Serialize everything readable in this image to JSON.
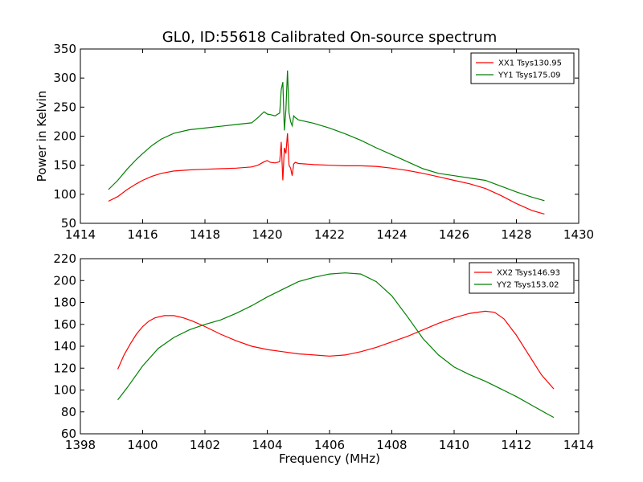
{
  "title": "GL0, ID:55618 Calibrated On-source spectrum",
  "chart_data": [
    {
      "type": "line",
      "ylabel": "Power in Kelvin",
      "xlabel": "",
      "xlim": [
        1414,
        1430
      ],
      "ylim": [
        50,
        350
      ],
      "xticks": [
        "1414",
        "1416",
        "1418",
        "1420",
        "1422",
        "1424",
        "1426",
        "1428",
        "1430"
      ],
      "yticks": [
        "50",
        "100",
        "150",
        "200",
        "250",
        "300",
        "350"
      ],
      "legend_position": "top-right",
      "series": [
        {
          "name": "XX1 Tsys130.95",
          "color": "#ff0000",
          "x": [
            1414.9,
            1415.2,
            1415.5,
            1415.8,
            1416.0,
            1416.3,
            1416.6,
            1417.0,
            1417.5,
            1418.0,
            1418.5,
            1419.0,
            1419.5,
            1419.7,
            1419.9,
            1420.0,
            1420.1,
            1420.25,
            1420.4,
            1420.45,
            1420.5,
            1420.55,
            1420.6,
            1420.65,
            1420.7,
            1420.75,
            1420.8,
            1420.85,
            1420.9,
            1421.0,
            1421.5,
            1422.0,
            1422.5,
            1423.0,
            1423.5,
            1424.0,
            1424.5,
            1425.0,
            1425.5,
            1426.0,
            1426.5,
            1427.0,
            1427.5,
            1428.0,
            1428.5,
            1428.9
          ],
          "values": [
            88,
            96,
            108,
            118,
            124,
            131,
            136,
            140,
            142,
            143,
            144,
            145,
            147,
            150,
            156,
            158,
            155,
            154,
            156,
            190,
            124,
            180,
            170,
            205,
            150,
            145,
            132,
            152,
            155,
            153,
            151,
            150,
            149,
            149,
            148,
            145,
            141,
            136,
            130,
            124,
            118,
            110,
            98,
            84,
            72,
            66
          ]
        },
        {
          "name": "YY1 Tsys175.09",
          "color": "#008000",
          "x": [
            1414.9,
            1415.2,
            1415.5,
            1415.8,
            1416.0,
            1416.3,
            1416.6,
            1417.0,
            1417.5,
            1418.0,
            1418.5,
            1419.0,
            1419.5,
            1419.7,
            1419.9,
            1420.0,
            1420.1,
            1420.25,
            1420.4,
            1420.45,
            1420.5,
            1420.55,
            1420.6,
            1420.65,
            1420.7,
            1420.75,
            1420.8,
            1420.85,
            1420.9,
            1421.0,
            1421.5,
            1422.0,
            1422.5,
            1423.0,
            1423.5,
            1424.0,
            1424.5,
            1425.0,
            1425.5,
            1426.0,
            1426.5,
            1427.0,
            1427.5,
            1428.0,
            1428.5,
            1428.9
          ],
          "values": [
            108,
            124,
            143,
            160,
            170,
            184,
            195,
            205,
            211,
            214,
            217,
            220,
            223,
            232,
            242,
            238,
            237,
            235,
            240,
            280,
            293,
            210,
            245,
            313,
            240,
            225,
            218,
            235,
            232,
            228,
            222,
            214,
            204,
            193,
            180,
            168,
            156,
            144,
            136,
            132,
            128,
            124,
            114,
            104,
            95,
            89
          ]
        }
      ]
    },
    {
      "type": "line",
      "ylabel": "",
      "xlabel": "Frequency (MHz)",
      "xlim": [
        1398,
        1414
      ],
      "ylim": [
        60,
        220
      ],
      "xticks": [
        "1398",
        "1400",
        "1402",
        "1404",
        "1406",
        "1408",
        "1410",
        "1412",
        "1414"
      ],
      "yticks": [
        "60",
        "80",
        "100",
        "120",
        "140",
        "160",
        "180",
        "200",
        "220"
      ],
      "legend_position": "top-right",
      "series": [
        {
          "name": "XX2 Tsys146.93",
          "color": "#ff0000",
          "x": [
            1399.2,
            1399.4,
            1399.6,
            1399.8,
            1400.0,
            1400.2,
            1400.4,
            1400.7,
            1401.0,
            1401.3,
            1401.6,
            1402.0,
            1402.5,
            1403.0,
            1403.5,
            1404.0,
            1404.5,
            1405.0,
            1405.5,
            1406.0,
            1406.5,
            1407.0,
            1407.5,
            1408.0,
            1408.5,
            1409.0,
            1409.5,
            1410.0,
            1410.5,
            1411.0,
            1411.3,
            1411.6,
            1412.0,
            1412.4,
            1412.8,
            1413.2
          ],
          "values": [
            119,
            132,
            142,
            151,
            158,
            163,
            166,
            168,
            168,
            166,
            163,
            158,
            151,
            145,
            140,
            137,
            135,
            133,
            132,
            131,
            132,
            135,
            139,
            144,
            149,
            155,
            161,
            166,
            170,
            172,
            171,
            165,
            150,
            132,
            114,
            101
          ]
        },
        {
          "name": "YY2 Tsys153.02",
          "color": "#008000",
          "x": [
            1399.2,
            1399.5,
            1400.0,
            1400.5,
            1401.0,
            1401.5,
            1402.0,
            1402.5,
            1403.0,
            1403.5,
            1404.0,
            1404.5,
            1405.0,
            1405.5,
            1406.0,
            1406.5,
            1407.0,
            1407.5,
            1408.0,
            1408.5,
            1409.0,
            1409.5,
            1410.0,
            1410.5,
            1411.0,
            1411.5,
            1412.0,
            1412.5,
            1413.0,
            1413.2
          ],
          "values": [
            91,
            102,
            122,
            138,
            148,
            155,
            160,
            164,
            170,
            177,
            185,
            192,
            199,
            203,
            206,
            207,
            206,
            199,
            186,
            167,
            147,
            132,
            121,
            114,
            108,
            101,
            94,
            86,
            78,
            75
          ]
        }
      ]
    }
  ]
}
